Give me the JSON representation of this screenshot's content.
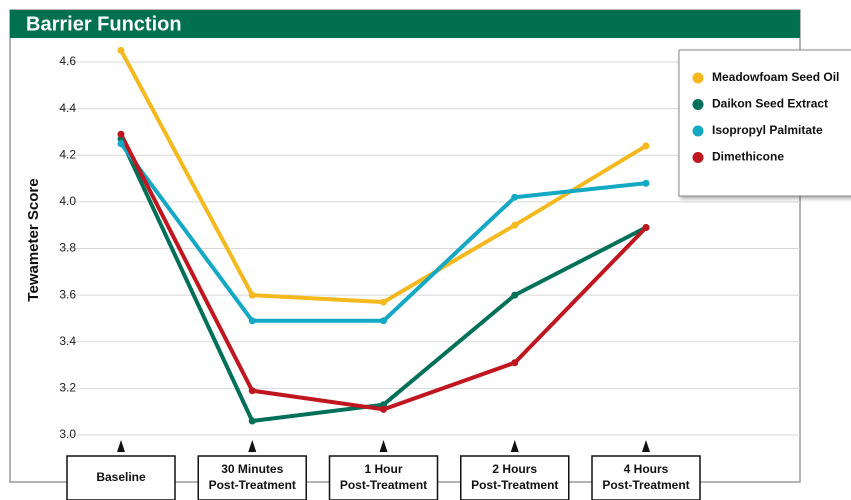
{
  "chart_data": {
    "type": "line",
    "title": "Barrier Function",
    "y_label": "Tewameter Score",
    "categories": [
      [
        "Baseline"
      ],
      [
        "30 Minutes",
        "Post-Treatment"
      ],
      [
        "1 Hour",
        "Post-Treatment"
      ],
      [
        "2 Hours",
        "Post-Treatment"
      ],
      [
        "4 Hours",
        "Post-Treatment"
      ]
    ],
    "series": [
      {
        "name": "Meadowfoam Seed Oil",
        "color": "#f5b91e",
        "values": [
          4.65,
          3.6,
          3.57,
          3.9,
          4.24
        ]
      },
      {
        "name": "Daikon Seed Extract",
        "color": "#007058",
        "values": [
          4.27,
          3.06,
          3.13,
          3.6,
          3.89
        ]
      },
      {
        "name": "Isopropyl Palmitate",
        "color": "#13a8c4",
        "values": [
          4.25,
          3.49,
          3.49,
          4.02,
          4.08
        ]
      },
      {
        "name": "Dimethicone",
        "color": "#c0161f",
        "values": [
          4.29,
          3.19,
          3.11,
          3.31,
          3.89
        ]
      }
    ],
    "ylim": [
      3.0,
      4.6
    ],
    "yticks": [
      {
        "value": 3,
        "label": "3.0"
      },
      3.2,
      3.4,
      3.6,
      3.8,
      {
        "value": 4,
        "label": "4.0"
      },
      4.2,
      4.4,
      4.6
    ],
    "grid": true,
    "legend": "top-right"
  }
}
